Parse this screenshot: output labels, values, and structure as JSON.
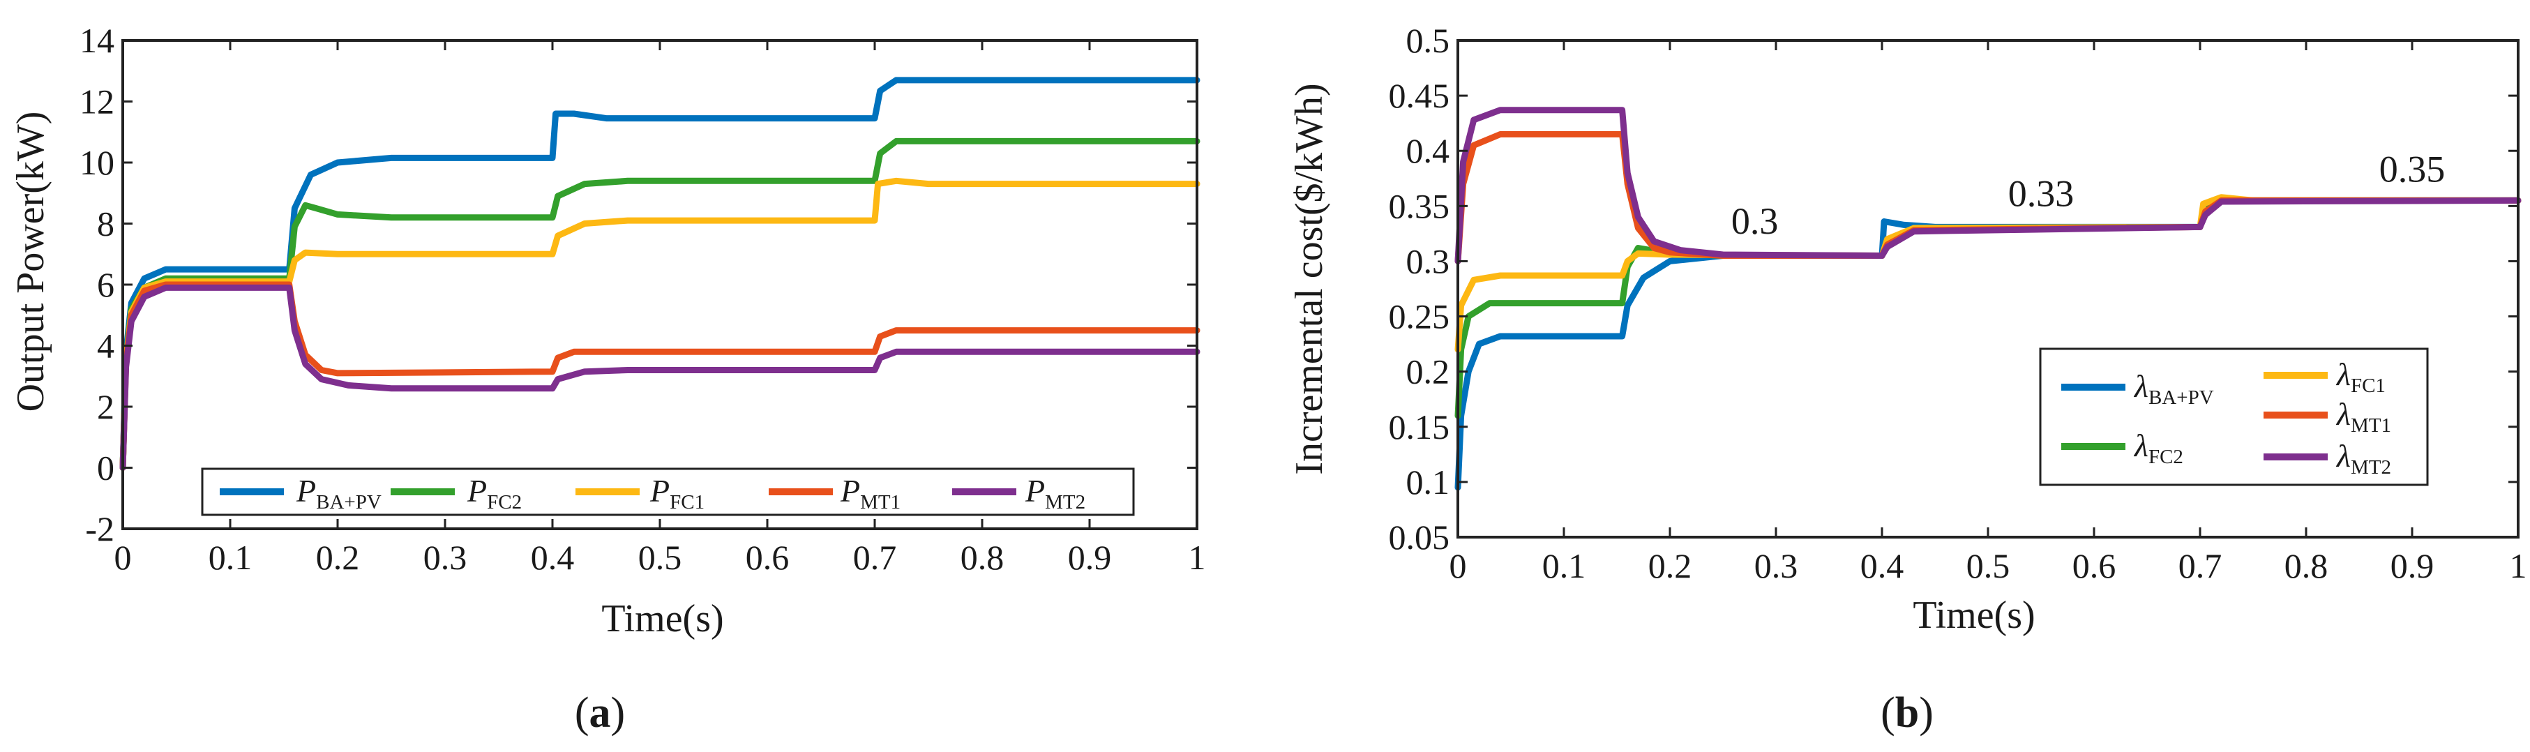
{
  "colors": {
    "blue": "#0072BD",
    "green": "#33A02C",
    "yellow": "#FDB813",
    "orange": "#E8501B",
    "purple": "#7E2F8E"
  },
  "panel_labels": [
    {
      "open": "(",
      "letter": "a",
      "close": ")"
    },
    {
      "open": "(",
      "letter": "b",
      "close": ")"
    }
  ],
  "chart_data": [
    {
      "type": "line",
      "panel": "a",
      "xlabel": "Time(s)",
      "ylabel": "Output Power(kW)",
      "xlim": [
        0,
        1.0
      ],
      "ylim": [
        -2,
        14
      ],
      "xticks": [
        0,
        0.1,
        0.2,
        0.3,
        0.4,
        0.5,
        0.6,
        0.7,
        0.8,
        0.9,
        1
      ],
      "xtick_labels": [
        "0",
        "0.1",
        "0.2",
        "0.3",
        "0.4",
        "0.5",
        "0.6",
        "0.7",
        "0.8",
        "0.9",
        "1"
      ],
      "yticks": [
        -2,
        0,
        2,
        4,
        6,
        8,
        10,
        12,
        14
      ],
      "ytick_labels": [
        "-2",
        "0",
        "2",
        "4",
        "6",
        "8",
        "10",
        "12",
        "14"
      ],
      "series": [
        {
          "name": "P",
          "sub": "BA+PV",
          "color": "#0072BD",
          "points": [
            [
              0,
              0
            ],
            [
              0.003,
              3.8
            ],
            [
              0.008,
              5.4
            ],
            [
              0.02,
              6.2
            ],
            [
              0.04,
              6.5
            ],
            [
              0.155,
              6.5
            ],
            [
              0.16,
              8.5
            ],
            [
              0.175,
              9.6
            ],
            [
              0.2,
              10.0
            ],
            [
              0.25,
              10.15
            ],
            [
              0.4,
              10.15
            ],
            [
              0.403,
              11.6
            ],
            [
              0.42,
              11.6
            ],
            [
              0.45,
              11.45
            ],
            [
              0.7,
              11.45
            ],
            [
              0.705,
              12.35
            ],
            [
              0.72,
              12.7
            ],
            [
              1.0,
              12.7
            ]
          ]
        },
        {
          "name": "P",
          "sub": "FC2",
          "color": "#33A02C",
          "points": [
            [
              0,
              0
            ],
            [
              0.003,
              3.6
            ],
            [
              0.008,
              5.2
            ],
            [
              0.02,
              5.9
            ],
            [
              0.04,
              6.2
            ],
            [
              0.155,
              6.2
            ],
            [
              0.16,
              7.9
            ],
            [
              0.17,
              8.6
            ],
            [
              0.18,
              8.5
            ],
            [
              0.2,
              8.3
            ],
            [
              0.25,
              8.2
            ],
            [
              0.4,
              8.2
            ],
            [
              0.405,
              8.9
            ],
            [
              0.43,
              9.3
            ],
            [
              0.47,
              9.4
            ],
            [
              0.7,
              9.4
            ],
            [
              0.705,
              10.3
            ],
            [
              0.72,
              10.7
            ],
            [
              1.0,
              10.7
            ]
          ]
        },
        {
          "name": "P",
          "sub": "FC1",
          "color": "#FDB813",
          "points": [
            [
              0,
              0
            ],
            [
              0.003,
              3.5
            ],
            [
              0.008,
              5.1
            ],
            [
              0.02,
              5.9
            ],
            [
              0.04,
              6.1
            ],
            [
              0.155,
              6.1
            ],
            [
              0.16,
              6.8
            ],
            [
              0.17,
              7.05
            ],
            [
              0.2,
              7.0
            ],
            [
              0.4,
              7.0
            ],
            [
              0.405,
              7.6
            ],
            [
              0.43,
              8.0
            ],
            [
              0.47,
              8.1
            ],
            [
              0.7,
              8.1
            ],
            [
              0.703,
              9.3
            ],
            [
              0.72,
              9.4
            ],
            [
              0.75,
              9.3
            ],
            [
              1.0,
              9.3
            ]
          ]
        },
        {
          "name": "P",
          "sub": "MT1",
          "color": "#E8501B",
          "points": [
            [
              0,
              0
            ],
            [
              0.003,
              3.4
            ],
            [
              0.008,
              5.0
            ],
            [
              0.02,
              5.8
            ],
            [
              0.04,
              6.0
            ],
            [
              0.155,
              6.0
            ],
            [
              0.16,
              4.8
            ],
            [
              0.17,
              3.7
            ],
            [
              0.185,
              3.2
            ],
            [
              0.2,
              3.1
            ],
            [
              0.4,
              3.15
            ],
            [
              0.405,
              3.6
            ],
            [
              0.42,
              3.8
            ],
            [
              0.7,
              3.8
            ],
            [
              0.705,
              4.3
            ],
            [
              0.72,
              4.5
            ],
            [
              1.0,
              4.5
            ]
          ]
        },
        {
          "name": "P",
          "sub": "MT2",
          "color": "#7E2F8E",
          "points": [
            [
              0,
              0
            ],
            [
              0.003,
              3.3
            ],
            [
              0.008,
              4.8
            ],
            [
              0.02,
              5.6
            ],
            [
              0.04,
              5.9
            ],
            [
              0.155,
              5.9
            ],
            [
              0.16,
              4.5
            ],
            [
              0.17,
              3.4
            ],
            [
              0.185,
              2.9
            ],
            [
              0.21,
              2.7
            ],
            [
              0.25,
              2.6
            ],
            [
              0.4,
              2.6
            ],
            [
              0.405,
              2.9
            ],
            [
              0.43,
              3.15
            ],
            [
              0.47,
              3.2
            ],
            [
              0.7,
              3.2
            ],
            [
              0.705,
              3.6
            ],
            [
              0.72,
              3.8
            ],
            [
              1.0,
              3.8
            ]
          ]
        }
      ]
    },
    {
      "type": "line",
      "panel": "b",
      "xlabel": "Time(s)",
      "ylabel": "Incremental cost($/kWh)",
      "xlim": [
        0,
        1.0
      ],
      "ylim": [
        0.05,
        0.5
      ],
      "xticks": [
        0,
        0.1,
        0.2,
        0.3,
        0.4,
        0.5,
        0.6,
        0.7,
        0.8,
        0.9,
        1
      ],
      "xtick_labels": [
        "0",
        "0.1",
        "0.2",
        "0.3",
        "0.4",
        "0.5",
        "0.6",
        "0.7",
        "0.8",
        "0.9",
        "1"
      ],
      "yticks": [
        0.05,
        0.1,
        0.15,
        0.2,
        0.25,
        0.3,
        0.35,
        0.4,
        0.45,
        0.5
      ],
      "ytick_labels": [
        "0.05",
        "0.1",
        "0.15",
        "0.2",
        "0.25",
        "0.3",
        "0.35",
        "0.4",
        "0.45",
        "0.5"
      ],
      "annotations": [
        {
          "text": "0.3",
          "x": 0.28,
          "y": 0.325
        },
        {
          "text": "0.33",
          "x": 0.55,
          "y": 0.35
        },
        {
          "text": "0.35",
          "x": 0.9,
          "y": 0.372
        }
      ],
      "series": [
        {
          "name": "λ",
          "sub": "BA+PV",
          "color": "#0072BD",
          "points": [
            [
              0,
              0.095
            ],
            [
              0.003,
              0.16
            ],
            [
              0.01,
              0.2
            ],
            [
              0.02,
              0.225
            ],
            [
              0.04,
              0.232
            ],
            [
              0.155,
              0.232
            ],
            [
              0.16,
              0.26
            ],
            [
              0.175,
              0.285
            ],
            [
              0.2,
              0.3
            ],
            [
              0.25,
              0.305
            ],
            [
              0.4,
              0.305
            ],
            [
              0.402,
              0.336
            ],
            [
              0.42,
              0.333
            ],
            [
              0.45,
              0.331
            ],
            [
              0.7,
              0.331
            ],
            [
              0.705,
              0.35
            ],
            [
              0.72,
              0.355
            ],
            [
              1.0,
              0.355
            ]
          ]
        },
        {
          "name": "λ",
          "sub": "FC2",
          "color": "#33A02C",
          "points": [
            [
              0,
              0.16
            ],
            [
              0.003,
              0.22
            ],
            [
              0.01,
              0.25
            ],
            [
              0.03,
              0.262
            ],
            [
              0.155,
              0.262
            ],
            [
              0.16,
              0.295
            ],
            [
              0.17,
              0.312
            ],
            [
              0.2,
              0.307
            ],
            [
              0.25,
              0.305
            ],
            [
              0.4,
              0.305
            ],
            [
              0.405,
              0.318
            ],
            [
              0.43,
              0.33
            ],
            [
              0.7,
              0.331
            ],
            [
              0.705,
              0.35
            ],
            [
              0.72,
              0.355
            ],
            [
              1.0,
              0.355
            ]
          ]
        },
        {
          "name": "λ",
          "sub": "FC1",
          "color": "#FDB813",
          "points": [
            [
              0,
              0.22
            ],
            [
              0.003,
              0.26
            ],
            [
              0.015,
              0.283
            ],
            [
              0.04,
              0.287
            ],
            [
              0.155,
              0.287
            ],
            [
              0.16,
              0.3
            ],
            [
              0.17,
              0.307
            ],
            [
              0.2,
              0.306
            ],
            [
              0.4,
              0.305
            ],
            [
              0.405,
              0.32
            ],
            [
              0.43,
              0.33
            ],
            [
              0.7,
              0.331
            ],
            [
              0.703,
              0.352
            ],
            [
              0.72,
              0.358
            ],
            [
              0.75,
              0.355
            ],
            [
              1.0,
              0.355
            ]
          ]
        },
        {
          "name": "λ",
          "sub": "MT1",
          "color": "#E8501B",
          "points": [
            [
              0,
              0.3
            ],
            [
              0.005,
              0.37
            ],
            [
              0.015,
              0.405
            ],
            [
              0.04,
              0.415
            ],
            [
              0.155,
              0.415
            ],
            [
              0.16,
              0.37
            ],
            [
              0.17,
              0.33
            ],
            [
              0.185,
              0.312
            ],
            [
              0.2,
              0.308
            ],
            [
              0.25,
              0.305
            ],
            [
              0.4,
              0.305
            ],
            [
              0.405,
              0.315
            ],
            [
              0.43,
              0.328
            ],
            [
              0.7,
              0.331
            ],
            [
              0.705,
              0.345
            ],
            [
              0.72,
              0.355
            ],
            [
              1.0,
              0.355
            ]
          ]
        },
        {
          "name": "λ",
          "sub": "MT2",
          "color": "#7E2F8E",
          "points": [
            [
              0,
              0.3
            ],
            [
              0.005,
              0.39
            ],
            [
              0.015,
              0.428
            ],
            [
              0.04,
              0.437
            ],
            [
              0.155,
              0.437
            ],
            [
              0.16,
              0.38
            ],
            [
              0.17,
              0.34
            ],
            [
              0.185,
              0.318
            ],
            [
              0.21,
              0.31
            ],
            [
              0.25,
              0.306
            ],
            [
              0.4,
              0.305
            ],
            [
              0.405,
              0.313
            ],
            [
              0.43,
              0.327
            ],
            [
              0.7,
              0.331
            ],
            [
              0.705,
              0.342
            ],
            [
              0.72,
              0.354
            ],
            [
              1.0,
              0.355
            ]
          ]
        }
      ]
    }
  ]
}
